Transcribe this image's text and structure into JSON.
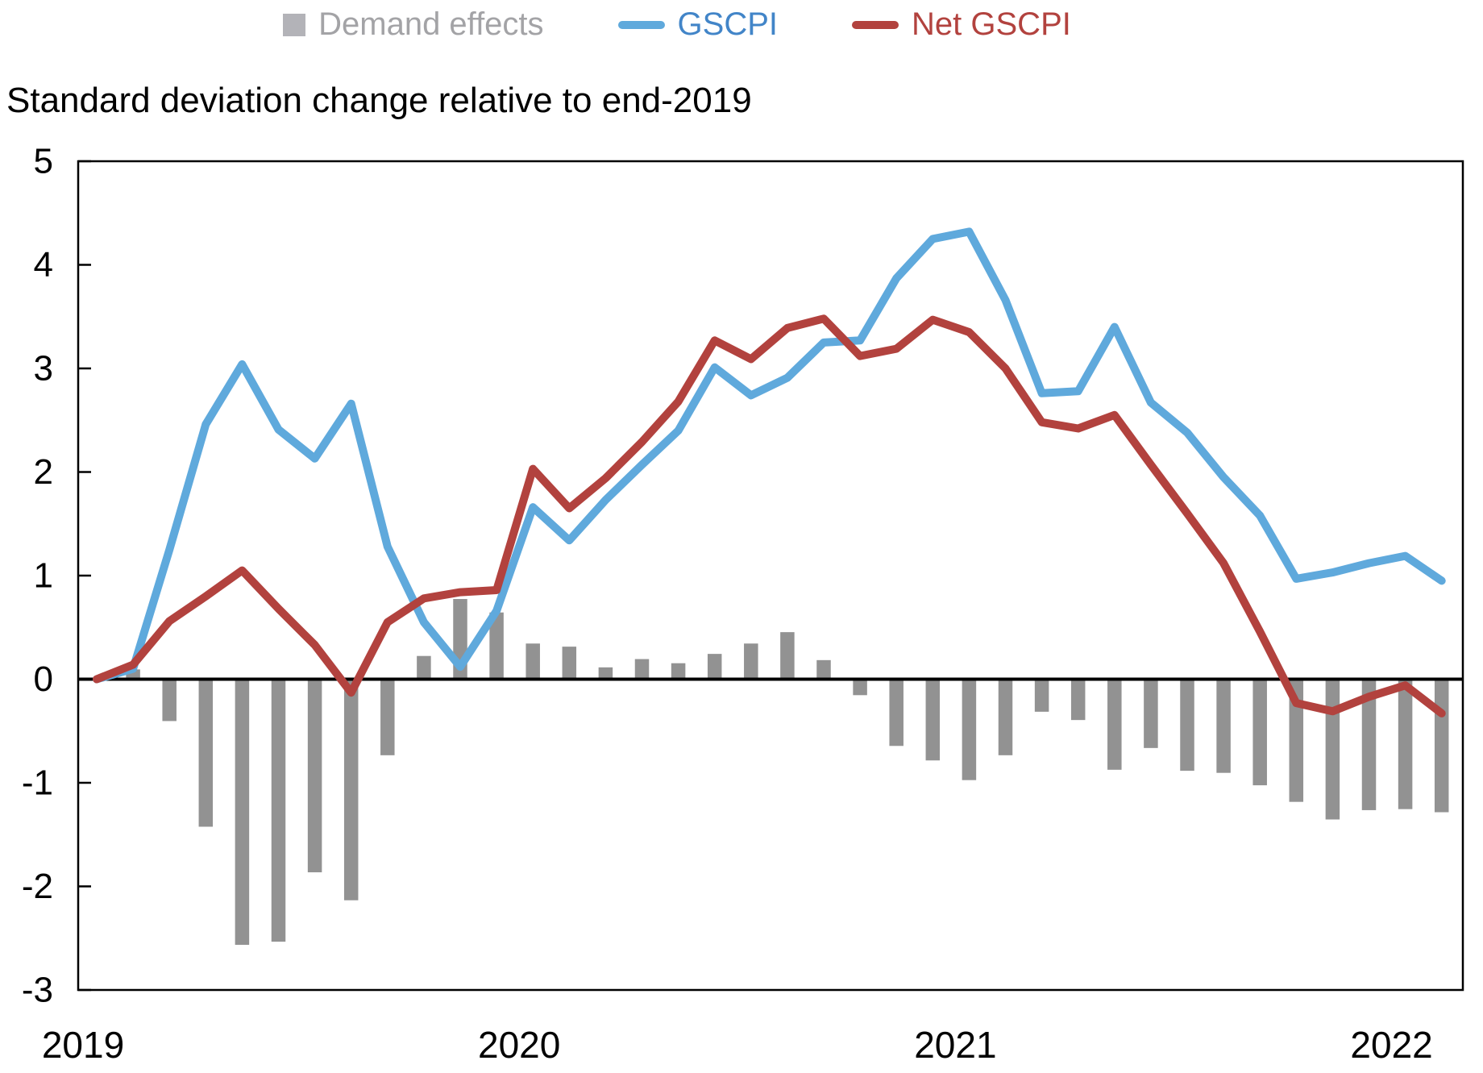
{
  "title": "Standard deviation change relative to end-2019",
  "legend": {
    "items": [
      {
        "label": "Demand effects",
        "type": "bar",
        "swatch_color": "#b3b3b8",
        "text_color": "#a3a3a6"
      },
      {
        "label": "GSCPI",
        "type": "line",
        "swatch_color": "#5fa9dc",
        "text_color": "#4285c8"
      },
      {
        "label": "Net GSCPI",
        "type": "line",
        "swatch_color": "#b2423e",
        "text_color": "#b2423e"
      }
    ]
  },
  "chart_data": {
    "type": "combo-bar-line",
    "title": "Standard deviation change relative to end-2019",
    "x": [
      "Jan 2019",
      "Feb 2019",
      "Mar 2019",
      "Apr 2019",
      "May 2019",
      "Jun 2019",
      "Jul 2019",
      "Aug 2019",
      "Sep 2019",
      "Oct 2019",
      "Nov 2019",
      "Dec 2019",
      "Jan 2020",
      "Feb 2020",
      "Mar 2020",
      "Apr 2020",
      "May 2020",
      "Jun 2020",
      "Jul 2020",
      "Aug 2020",
      "Sep 2020",
      "Oct 2020",
      "Nov 2020",
      "Dec 2020",
      "Jan 2021",
      "Feb 2021",
      "Mar 2021",
      "Apr 2021",
      "May 2021",
      "Jun 2021",
      "Jul 2021",
      "Aug 2021",
      "Sep 2021",
      "Oct 2021",
      "Nov 2021",
      "Dec 2021",
      "Jan 2022",
      "Feb 2022"
    ],
    "series": [
      {
        "name": "Demand effects",
        "type": "bar",
        "color": "#929292",
        "values": [
          0,
          0.1,
          -0.41,
          -1.43,
          -2.57,
          -2.54,
          -1.87,
          -2.14,
          -0.74,
          0.23,
          0.78,
          0.65,
          0.35,
          0.32,
          0.12,
          0.2,
          0.16,
          0.25,
          0.35,
          0.46,
          0.19,
          -0.16,
          -0.65,
          -0.79,
          -0.98,
          -0.74,
          -0.32,
          -0.4,
          -0.88,
          -0.67,
          -0.89,
          -0.91,
          -1.03,
          -1.19,
          -1.36,
          -1.27,
          -1.26,
          -1.29
        ]
      },
      {
        "name": "GSCPI",
        "type": "line",
        "color": "#5fa9dc",
        "values": [
          0,
          0.1,
          1.25,
          2.46,
          3.04,
          2.41,
          2.13,
          2.66,
          1.28,
          0.55,
          0.12,
          0.66,
          1.66,
          1.34,
          1.73,
          2.07,
          2.4,
          3.01,
          2.74,
          2.91,
          3.25,
          3.27,
          3.87,
          4.25,
          4.32,
          3.66,
          2.76,
          2.78,
          3.4,
          2.67,
          2.38,
          1.95,
          1.58,
          0.97,
          1.03,
          1.12,
          1.19,
          0.95
        ]
      },
      {
        "name": "Net GSCPI",
        "type": "line",
        "color": "#b2423e",
        "values": [
          0,
          0.14,
          0.56,
          0.8,
          1.05,
          0.68,
          0.33,
          -0.13,
          0.55,
          0.78,
          0.84,
          0.86,
          2.03,
          1.65,
          1.94,
          2.29,
          2.68,
          3.27,
          3.09,
          3.39,
          3.48,
          3.12,
          3.19,
          3.47,
          3.35,
          3.0,
          2.48,
          2.42,
          2.55,
          2.07,
          1.6,
          1.12,
          0.46,
          -0.23,
          -0.31,
          -0.17,
          -0.06,
          -0.33
        ]
      }
    ],
    "ylim": [
      -3,
      5
    ],
    "yticks": [
      5,
      4,
      3,
      2,
      1,
      0,
      -1,
      -2,
      -3
    ],
    "xticks": [
      {
        "label": "2019",
        "month_index": 0
      },
      {
        "label": "2020",
        "month_index": 12
      },
      {
        "label": "2021",
        "month_index": 24
      },
      {
        "label": "2022",
        "month_index": 36
      }
    ],
    "zero_line": true,
    "grid": false,
    "legend_position": "top-center"
  }
}
